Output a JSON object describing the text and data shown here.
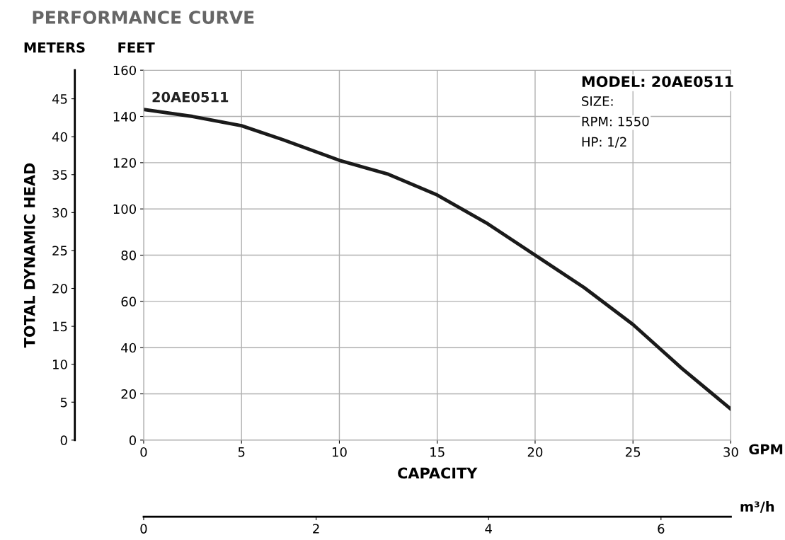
{
  "chart_data": {
    "type": "line",
    "title": "PERFORMANCE CURVE",
    "xlabel": "CAPACITY",
    "ylabel": "FEET",
    "y2label": "TOTAL DYNAMIC HEAD",
    "x2label": "m³/h",
    "annotations": [
      "METERS",
      "GPM",
      "MODEL: 20AE0511",
      "SIZE:",
      "RPM: 1550",
      "HP: 1/2"
    ],
    "x": [
      0,
      2.5,
      5,
      7.1,
      10,
      12.5,
      15,
      17.5,
      20,
      22.5,
      25,
      27.5,
      30
    ],
    "series": [
      {
        "name": "20AE0511",
        "color": "#1a1a1a",
        "values": [
          143,
          140,
          136,
          130,
          121,
          115,
          106,
          94,
          80,
          66,
          50,
          31,
          13.4
        ]
      }
    ],
    "xlim": [
      0,
      30
    ],
    "xticks": [
      0,
      5,
      10,
      15,
      20,
      25,
      30
    ],
    "ylim": [
      0,
      160
    ],
    "yticks": [
      0,
      20,
      40,
      60,
      80,
      100,
      120,
      140,
      160
    ],
    "y2lim": [
      0,
      48.77
    ],
    "y2ticks": [
      0,
      5,
      10,
      15,
      20,
      25,
      30,
      35,
      40,
      45
    ],
    "x2lim": [
      0,
      6.81
    ],
    "x2ticks": [
      0,
      2,
      4,
      6
    ],
    "grid": true,
    "marker": "none",
    "line_style": "solid",
    "legend": false
  }
}
